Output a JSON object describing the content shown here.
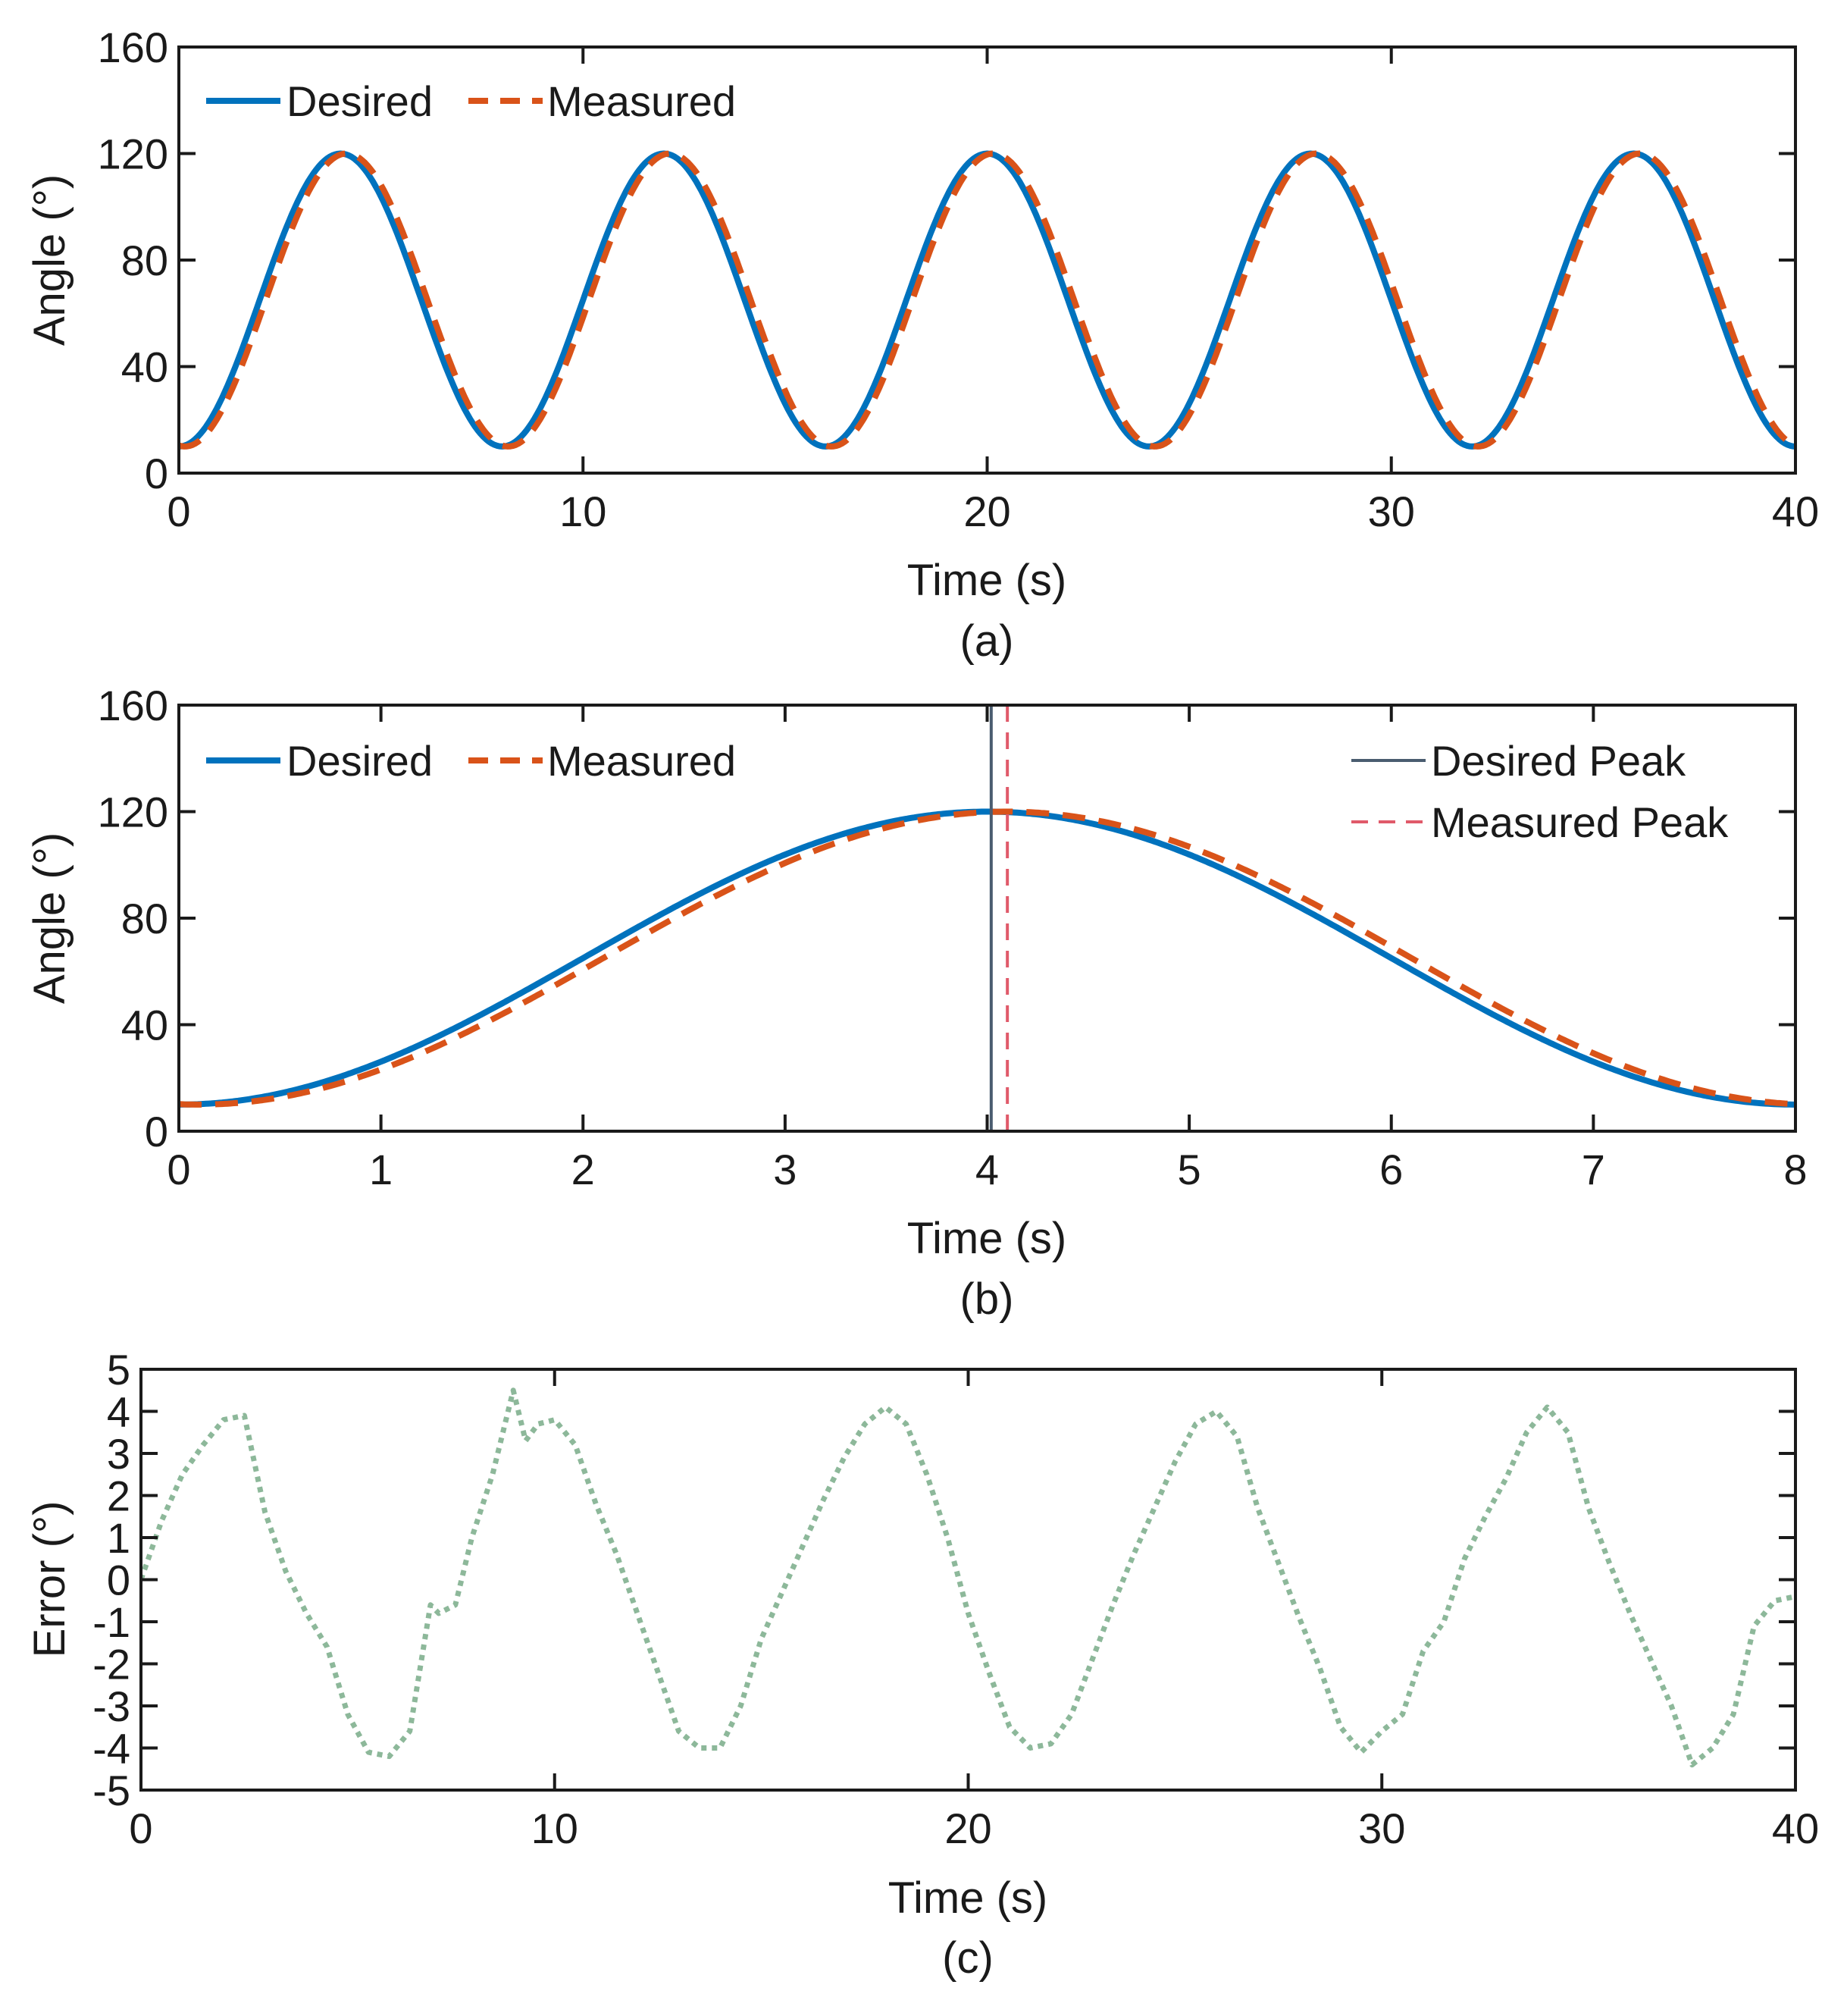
{
  "colors": {
    "desired": "#0072BD",
    "measured": "#D95319",
    "desired_peak": "#4A5C70",
    "measured_peak": "#E05A6A",
    "error": "#8DB89A",
    "axis": "#1a1a1a"
  },
  "chart_data": [
    {
      "type": "line",
      "panel_caption": "(a)",
      "xlabel": "Time (s)",
      "ylabel": "Angle (°)",
      "xlim": [
        0,
        40
      ],
      "ylim": [
        0,
        160
      ],
      "xticks": [
        0,
        10,
        20,
        30,
        40
      ],
      "yticks": [
        0,
        40,
        80,
        120,
        160
      ],
      "legend_position": "top-left",
      "series": [
        {
          "name": "Desired",
          "style": "solid",
          "model": {
            "kind": "cosine",
            "offset": 65,
            "amplitude": 55,
            "period": 8,
            "phase_shift": 0
          }
        },
        {
          "name": "Measured",
          "style": "dashed",
          "model": {
            "kind": "cosine",
            "offset": 65,
            "amplitude": 55,
            "period": 8,
            "phase_shift": 0.15
          }
        }
      ]
    },
    {
      "type": "line",
      "panel_caption": "(b)",
      "xlabel": "Time (s)",
      "ylabel": "Angle (°)",
      "xlim": [
        0,
        8
      ],
      "ylim": [
        0,
        160
      ],
      "xticks": [
        0,
        1,
        2,
        3,
        4,
        5,
        6,
        7,
        8
      ],
      "yticks": [
        0,
        40,
        80,
        120,
        160
      ],
      "legend_position": "top-left",
      "legend2_position": "top-right",
      "series": [
        {
          "name": "Desired",
          "style": "solid",
          "model": {
            "kind": "cosine",
            "offset": 65,
            "amplitude": 55,
            "period": 8,
            "phase_shift": 0
          }
        },
        {
          "name": "Measured",
          "style": "dashed",
          "model": {
            "kind": "cosine",
            "offset": 65,
            "amplitude": 55,
            "period": 8,
            "phase_shift": 0.1
          }
        }
      ],
      "vlines": [
        {
          "name": "Desired Peak",
          "x": 4.02,
          "style": "solid"
        },
        {
          "name": "Measured Peak",
          "x": 4.1,
          "style": "dashed"
        }
      ]
    },
    {
      "type": "line",
      "panel_caption": "(c)",
      "xlabel": "Time (s)",
      "ylabel": "Error (°)",
      "xlim": [
        0,
        40
      ],
      "ylim": [
        -5,
        5
      ],
      "xticks": [
        0,
        10,
        20,
        30,
        40
      ],
      "yticks": [
        -5,
        -4,
        -3,
        -2,
        -1,
        0,
        1,
        2,
        3,
        4,
        5
      ],
      "series": [
        {
          "name": "Error",
          "style": "dotted",
          "x": [
            0,
            0.5,
            1,
            1.5,
            2,
            2.5,
            3,
            3.5,
            4,
            4.5,
            5,
            5.5,
            6,
            6.5,
            7,
            7.2,
            7.6,
            8,
            8.5,
            9,
            9.3,
            9.6,
            10,
            10.5,
            11,
            11.5,
            12,
            12.5,
            13,
            13.5,
            14,
            14.5,
            15,
            15.5,
            16,
            16.5,
            17,
            17.5,
            18,
            18.5,
            19,
            19.5,
            20,
            20.5,
            21,
            21.5,
            22,
            22.5,
            23,
            23.5,
            24,
            24.5,
            25,
            25.5,
            26,
            26.5,
            27,
            27.5,
            28,
            28.5,
            29,
            29.5,
            30,
            30.5,
            31,
            31.5,
            32,
            32.5,
            33,
            33.5,
            34,
            34.5,
            35,
            35.5,
            36,
            36.5,
            37,
            37.5,
            38,
            38.5,
            39,
            39.5,
            40
          ],
          "y": [
            0,
            1.4,
            2.5,
            3.2,
            3.8,
            3.9,
            1.6,
            0.2,
            -0.8,
            -1.6,
            -3.2,
            -4.1,
            -4.2,
            -3.6,
            -0.6,
            -0.8,
            -0.6,
            1.0,
            2.5,
            4.5,
            3.3,
            3.7,
            3.8,
            3.2,
            1.8,
            0.6,
            -0.8,
            -2.2,
            -3.6,
            -4.0,
            -4.0,
            -3.0,
            -1.4,
            -0.3,
            0.8,
            1.9,
            2.9,
            3.7,
            4.1,
            3.7,
            2.5,
            1.0,
            -0.8,
            -2.2,
            -3.5,
            -4.0,
            -3.9,
            -3.2,
            -1.9,
            -0.6,
            0.6,
            1.7,
            2.8,
            3.7,
            4.0,
            3.4,
            1.7,
            0.4,
            -0.9,
            -2.1,
            -3.5,
            -4.1,
            -3.6,
            -3.2,
            -1.7,
            -1.0,
            0.5,
            1.5,
            2.4,
            3.5,
            4.1,
            3.5,
            1.7,
            0.4,
            -0.8,
            -1.9,
            -3.0,
            -4.4,
            -4.0,
            -3.2,
            -1.1,
            -0.5,
            -0.4
          ]
        }
      ]
    }
  ]
}
